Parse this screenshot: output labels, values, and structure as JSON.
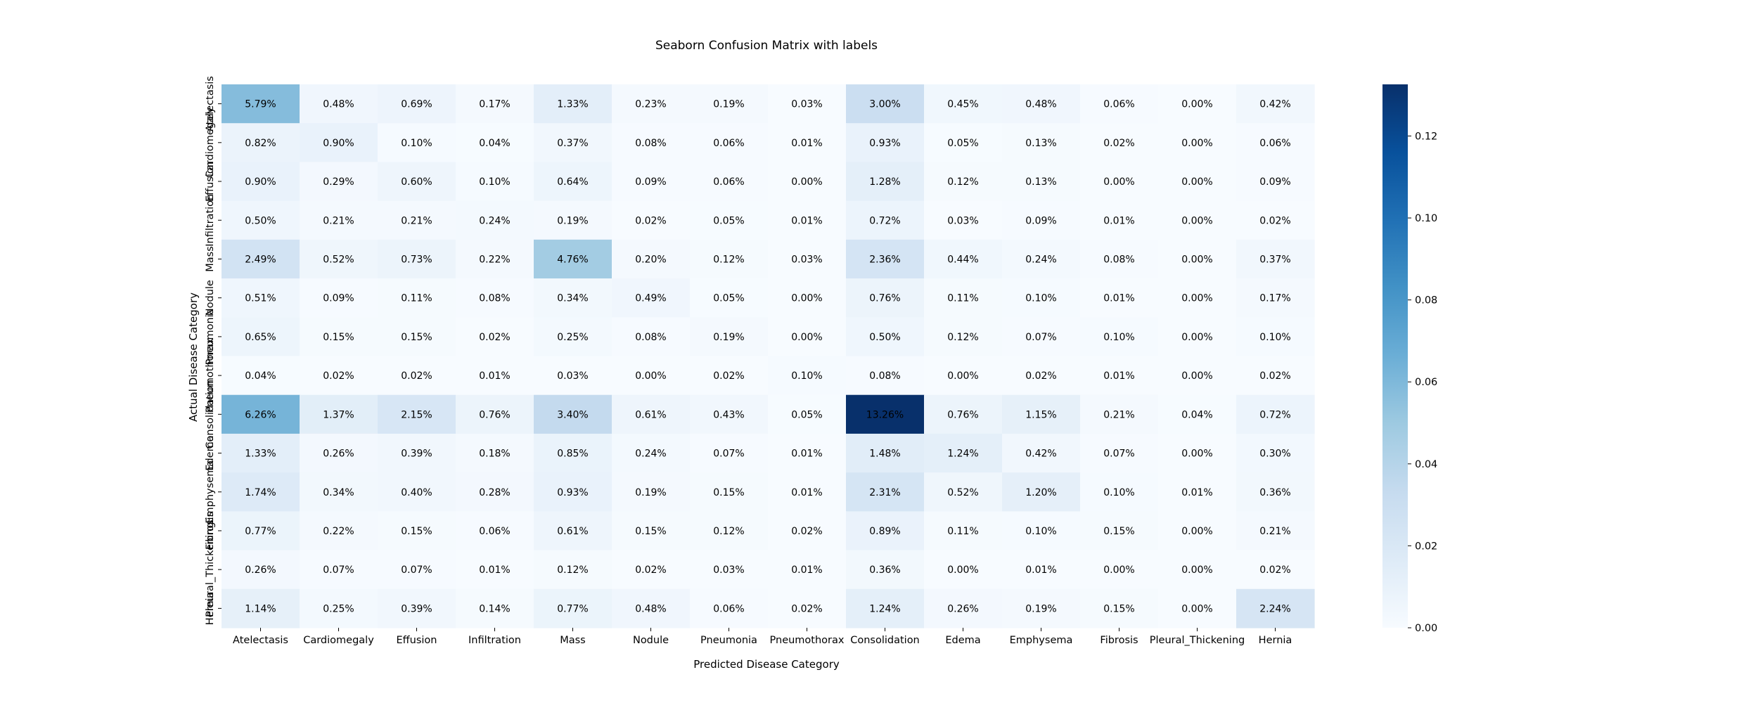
{
  "chart_data": {
    "type": "heatmap",
    "title": "Seaborn Confusion Matrix with labels",
    "xlabel": "Predicted Disease Category",
    "ylabel": "Actual Disease Category",
    "x_categories": [
      "Atelectasis",
      "Cardiomegaly",
      "Effusion",
      "Infiltration",
      "Mass",
      "Nodule",
      "Pneumonia",
      "Pneumothorax",
      "Consolidation",
      "Edema",
      "Emphysema",
      "Fibrosis",
      "Pleural_Thickening",
      "Hernia"
    ],
    "y_categories": [
      "Atelectasis",
      "Cardiomegaly",
      "Effusion",
      "Infiltration",
      "Mass",
      "Nodule",
      "Pneumonia",
      "Pneumothorax",
      "Consolidation",
      "Edema",
      "Emphysema",
      "Fibrosis",
      "Pleural_Thickening",
      "Hernia"
    ],
    "values": [
      [
        5.79,
        0.48,
        0.69,
        0.17,
        1.33,
        0.23,
        0.19,
        0.03,
        3.0,
        0.45,
        0.48,
        0.06,
        0.0,
        0.42
      ],
      [
        0.82,
        0.9,
        0.1,
        0.04,
        0.37,
        0.08,
        0.06,
        0.01,
        0.93,
        0.05,
        0.13,
        0.02,
        0.0,
        0.06
      ],
      [
        0.9,
        0.29,
        0.6,
        0.1,
        0.64,
        0.09,
        0.06,
        0.0,
        1.28,
        0.12,
        0.13,
        0.0,
        0.0,
        0.09
      ],
      [
        0.5,
        0.21,
        0.21,
        0.24,
        0.19,
        0.02,
        0.05,
        0.01,
        0.72,
        0.03,
        0.09,
        0.01,
        0.0,
        0.02
      ],
      [
        2.49,
        0.52,
        0.73,
        0.22,
        4.76,
        0.2,
        0.12,
        0.03,
        2.36,
        0.44,
        0.24,
        0.08,
        0.0,
        0.37
      ],
      [
        0.51,
        0.09,
        0.11,
        0.08,
        0.34,
        0.49,
        0.05,
        0.0,
        0.76,
        0.11,
        0.1,
        0.01,
        0.0,
        0.17
      ],
      [
        0.65,
        0.15,
        0.15,
        0.02,
        0.25,
        0.08,
        0.19,
        0.0,
        0.5,
        0.12,
        0.07,
        0.1,
        0.0,
        0.1
      ],
      [
        0.04,
        0.02,
        0.02,
        0.01,
        0.03,
        0.0,
        0.02,
        0.1,
        0.08,
        0.0,
        0.02,
        0.01,
        0.0,
        0.02
      ],
      [
        6.26,
        1.37,
        2.15,
        0.76,
        3.4,
        0.61,
        0.43,
        0.05,
        13.26,
        0.76,
        1.15,
        0.21,
        0.04,
        0.72
      ],
      [
        1.33,
        0.26,
        0.39,
        0.18,
        0.85,
        0.24,
        0.07,
        0.01,
        1.48,
        1.24,
        0.42,
        0.07,
        0.0,
        0.3
      ],
      [
        1.74,
        0.34,
        0.4,
        0.28,
        0.93,
        0.19,
        0.15,
        0.01,
        2.31,
        0.52,
        1.2,
        0.1,
        0.01,
        0.36
      ],
      [
        0.77,
        0.22,
        0.15,
        0.06,
        0.61,
        0.15,
        0.12,
        0.02,
        0.89,
        0.11,
        0.1,
        0.15,
        0.0,
        0.21
      ],
      [
        0.26,
        0.07,
        0.07,
        0.01,
        0.12,
        0.02,
        0.03,
        0.01,
        0.36,
        0.0,
        0.01,
        0.0,
        0.0,
        0.02
      ],
      [
        1.14,
        0.25,
        0.39,
        0.14,
        0.77,
        0.48,
        0.06,
        0.02,
        1.24,
        0.26,
        0.19,
        0.15,
        0.0,
        2.24
      ]
    ],
    "value_format": "percent",
    "colormap": "Blues",
    "colorbar": {
      "min": 0.0,
      "max": 0.1326,
      "ticks": [
        "0.00",
        "0.02",
        "0.04",
        "0.06",
        "0.08",
        "0.10",
        "0.12"
      ]
    },
    "light_text_color": "#ffffff",
    "dark_text_color": "#262626"
  }
}
